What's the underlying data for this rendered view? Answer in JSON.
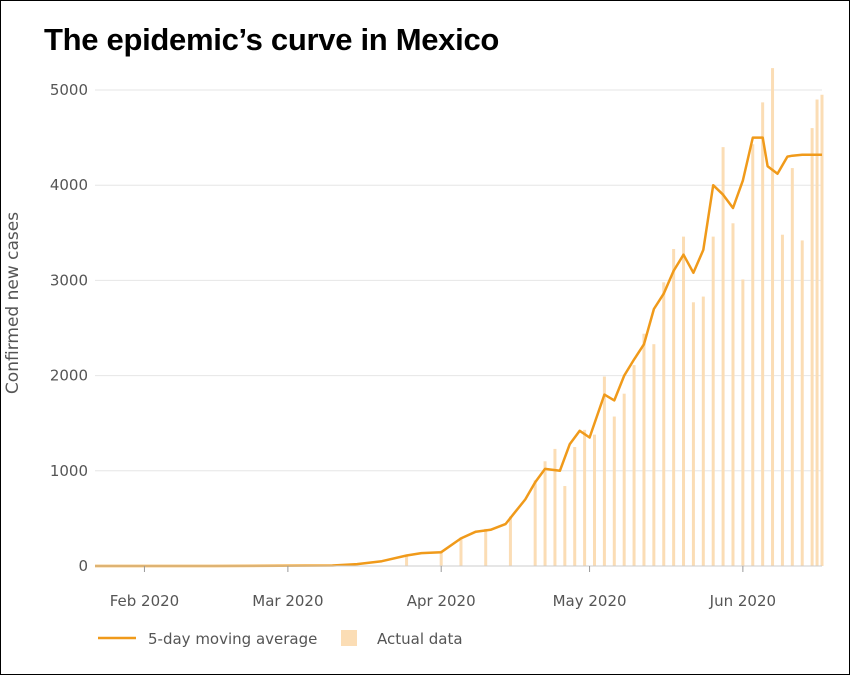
{
  "title": "The epidemic’s curve in Mexico",
  "colors": {
    "line": "#f09a1a",
    "bars": "#fbddb5",
    "grid": "#e6e6e6",
    "text": "#555555"
  },
  "chart_data": {
    "type": "bar",
    "title": "The epidemic’s curve in Mexico",
    "xlabel": "",
    "ylabel": "Confirmed new cases",
    "ylim": [
      0,
      5300
    ],
    "yticks": [
      0,
      1000,
      2000,
      3000,
      4000,
      5000
    ],
    "xticks": [
      {
        "date": "2020-02-01",
        "label": "Feb 2020"
      },
      {
        "date": "2020-03-01",
        "label": "Mar 2020"
      },
      {
        "date": "2020-04-01",
        "label": "Apr 2020"
      },
      {
        "date": "2020-05-01",
        "label": "May 2020"
      },
      {
        "date": "2020-06-01",
        "label": "Jun 2020"
      }
    ],
    "x_range": [
      "2020-01-22",
      "2020-06-17"
    ],
    "grid": true,
    "legend_position": "bottom-left",
    "series": [
      {
        "name": "5-day moving average",
        "kind": "line",
        "x": [
          "2020-01-22",
          "2020-02-15",
          "2020-03-10",
          "2020-03-15",
          "2020-03-20",
          "2020-03-25",
          "2020-03-28",
          "2020-04-01",
          "2020-04-05",
          "2020-04-08",
          "2020-04-11",
          "2020-04-14",
          "2020-04-16",
          "2020-04-18",
          "2020-04-20",
          "2020-04-22",
          "2020-04-25",
          "2020-04-27",
          "2020-04-29",
          "2020-05-01",
          "2020-05-04",
          "2020-05-06",
          "2020-05-08",
          "2020-05-10",
          "2020-05-12",
          "2020-05-14",
          "2020-05-16",
          "2020-05-18",
          "2020-05-20",
          "2020-05-22",
          "2020-05-24",
          "2020-05-26",
          "2020-05-28",
          "2020-05-30",
          "2020-06-01",
          "2020-06-03",
          "2020-06-05",
          "2020-06-06",
          "2020-06-08",
          "2020-06-10",
          "2020-06-11",
          "2020-06-13",
          "2020-06-15",
          "2020-06-16",
          "2020-06-17"
        ],
        "values": [
          0,
          0,
          5,
          20,
          50,
          110,
          135,
          145,
          290,
          360,
          380,
          440,
          570,
          700,
          880,
          1020,
          1000,
          1280,
          1420,
          1350,
          1800,
          1740,
          2000,
          2170,
          2330,
          2700,
          2860,
          3100,
          3270,
          3080,
          3320,
          4000,
          3900,
          3760,
          4050,
          4500,
          4500,
          4200,
          4120,
          4300,
          4310,
          4320,
          4320,
          4320,
          4320
        ]
      },
      {
        "name": "Actual data",
        "kind": "bar",
        "x": [
          "2020-03-25",
          "2020-04-01",
          "2020-04-05",
          "2020-04-10",
          "2020-04-15",
          "2020-04-20",
          "2020-04-22",
          "2020-04-24",
          "2020-04-26",
          "2020-04-28",
          "2020-04-30",
          "2020-05-02",
          "2020-05-04",
          "2020-05-06",
          "2020-05-08",
          "2020-05-10",
          "2020-05-12",
          "2020-05-14",
          "2020-05-16",
          "2020-05-18",
          "2020-05-20",
          "2020-05-22",
          "2020-05-24",
          "2020-05-26",
          "2020-05-28",
          "2020-05-30",
          "2020-06-01",
          "2020-06-03",
          "2020-06-05",
          "2020-06-07",
          "2020-06-09",
          "2020-06-11",
          "2020-06-13",
          "2020-06-15",
          "2020-06-16",
          "2020-06-17"
        ],
        "values": [
          100,
          160,
          300,
          390,
          520,
          900,
          1100,
          1230,
          840,
          1250,
          1430,
          1380,
          1990,
          1570,
          1810,
          2110,
          2440,
          2330,
          2980,
          3330,
          3460,
          2770,
          2830,
          3460,
          4400,
          3600,
          3010,
          4430,
          4870,
          5230,
          3480,
          4180,
          3420,
          4600,
          4900,
          4950
        ]
      }
    ]
  }
}
